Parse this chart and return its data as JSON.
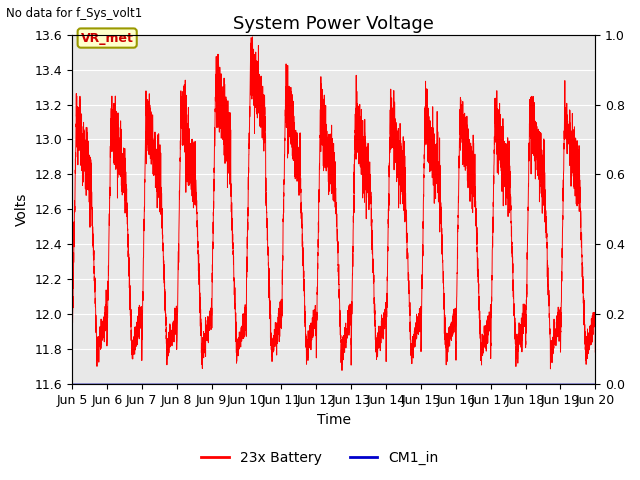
{
  "title": "System Power Voltage",
  "top_left_text": "No data for f_Sys_volt1",
  "annotation_text": "VR_met",
  "xlabel": "Time",
  "ylabel": "Volts",
  "ylim_left": [
    11.6,
    13.6
  ],
  "ylim_right": [
    0.0,
    1.0
  ],
  "yticks_left": [
    11.6,
    11.8,
    12.0,
    12.2,
    12.4,
    12.6,
    12.8,
    13.0,
    13.2,
    13.4,
    13.6
  ],
  "yticks_right": [
    0.0,
    0.2,
    0.4,
    0.6,
    0.8,
    1.0
  ],
  "xtick_labels": [
    "Jun 5",
    "Jun 6",
    "Jun 7",
    "Jun 8",
    "Jun 9",
    "Jun 10",
    "Jun 11",
    "Jun 12",
    "Jun 13",
    "Jun 14",
    "Jun 15",
    "Jun 16",
    "Jun 17",
    "Jun 18",
    "Jun 19",
    "Jun 20"
  ],
  "legend_labels": [
    "23x Battery",
    "CM1_in"
  ],
  "legend_colors": [
    "#ff0000",
    "#0000cc"
  ],
  "battery_color": "#ff0000",
  "cm1_color": "#0000bb",
  "plot_bg_color": "#e8e8e8",
  "title_fontsize": 13,
  "label_fontsize": 10,
  "tick_fontsize": 9,
  "annotation_bg": "#ffffcc",
  "annotation_border": "#999900"
}
